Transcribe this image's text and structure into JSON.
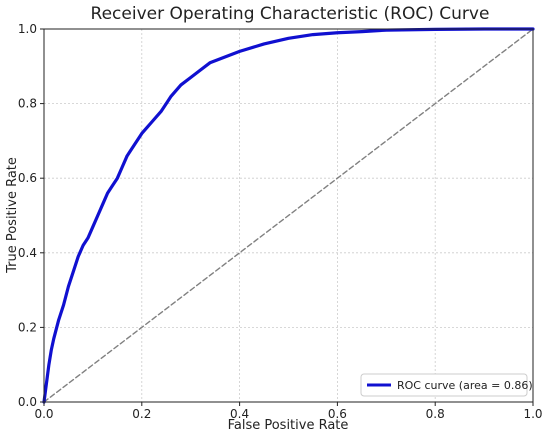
{
  "chart_data": {
    "type": "line",
    "title": "Receiver Operating Characteristic (ROC) Curve",
    "xlabel": "False Positive Rate",
    "ylabel": "True Positive Rate",
    "xlim": [
      0.0,
      1.0
    ],
    "ylim": [
      0.0,
      1.0
    ],
    "x_ticks": [
      "0.0",
      "0.2",
      "0.4",
      "0.6",
      "0.8",
      "1.0"
    ],
    "y_ticks": [
      "0.0",
      "0.2",
      "0.4",
      "0.6",
      "0.8",
      "1.0"
    ],
    "grid": true,
    "legend_position": "bottom-right",
    "series": [
      {
        "name": "ROC curve (area = 0.86)",
        "color": "#1010d0",
        "style": "solid",
        "x": [
          0.0,
          0.005,
          0.01,
          0.015,
          0.02,
          0.03,
          0.04,
          0.05,
          0.06,
          0.07,
          0.08,
          0.09,
          0.1,
          0.11,
          0.12,
          0.13,
          0.14,
          0.15,
          0.16,
          0.17,
          0.18,
          0.2,
          0.22,
          0.24,
          0.25,
          0.26,
          0.28,
          0.3,
          0.32,
          0.34,
          0.36,
          0.38,
          0.4,
          0.45,
          0.5,
          0.55,
          0.6,
          0.65,
          0.7,
          0.8,
          0.9,
          1.0
        ],
        "y": [
          0.0,
          0.05,
          0.1,
          0.14,
          0.17,
          0.22,
          0.26,
          0.31,
          0.35,
          0.39,
          0.42,
          0.44,
          0.47,
          0.5,
          0.53,
          0.56,
          0.58,
          0.6,
          0.63,
          0.66,
          0.68,
          0.72,
          0.75,
          0.78,
          0.8,
          0.82,
          0.85,
          0.87,
          0.89,
          0.91,
          0.92,
          0.93,
          0.94,
          0.96,
          0.975,
          0.985,
          0.99,
          0.993,
          0.997,
          0.999,
          1.0,
          1.0
        ]
      },
      {
        "name": "",
        "color": "#808080",
        "style": "dashed",
        "x": [
          0.0,
          1.0
        ],
        "y": [
          0.0,
          1.0
        ]
      }
    ]
  }
}
